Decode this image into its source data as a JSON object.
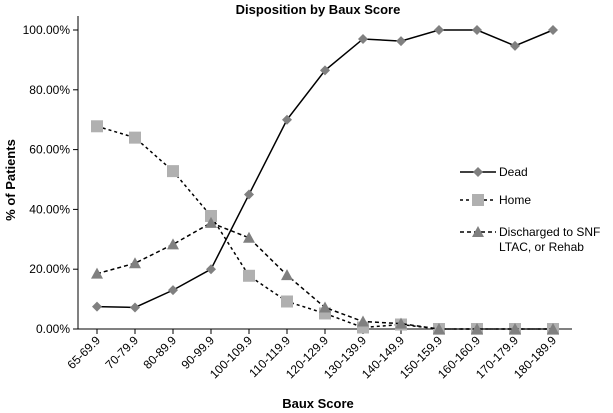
{
  "chart_data": {
    "type": "line",
    "title": "Disposition by Baux Score",
    "xlabel": "Baux Score",
    "ylabel": "% of Patients",
    "categories": [
      "65-69.9",
      "70-79.9",
      "80-89.9",
      "90-99.9",
      "100-109.9",
      "110-119.9",
      "120-129.9",
      "130-139.9",
      "140-149.9",
      "150-159.9",
      "160-160.9",
      "170-179.9",
      "180-189.9"
    ],
    "y_ticks": [
      "0.00%",
      "20.00%",
      "40.00%",
      "60.00%",
      "80.00%",
      "100.00%"
    ],
    "ylim": [
      0,
      100
    ],
    "grid": false,
    "legend_position": "right",
    "series": [
      {
        "name": "Dead",
        "marker": "diamond",
        "line": "solid",
        "color": "#000000",
        "marker_color": "#808080",
        "values": [
          7.5,
          7.2,
          13,
          20,
          45,
          70,
          86.5,
          97,
          96.3,
          100,
          100,
          94.7,
          100
        ]
      },
      {
        "name": "Home",
        "marker": "square",
        "line": "dotted",
        "color": "#000000",
        "marker_color": "#b0b0b0",
        "values": [
          67.8,
          64,
          52.8,
          37.8,
          17.8,
          9.2,
          5.2,
          0.5,
          1.5,
          0,
          0,
          0,
          0
        ]
      },
      {
        "name": "Discharged to SNF\nLTAC, or Rehab",
        "marker": "triangle",
        "line": "dashed",
        "color": "#000000",
        "marker_color": "#808080",
        "values": [
          18.5,
          22,
          28.3,
          35.5,
          30.5,
          18,
          7.2,
          2.5,
          1.8,
          0,
          0,
          0,
          0
        ]
      }
    ]
  }
}
